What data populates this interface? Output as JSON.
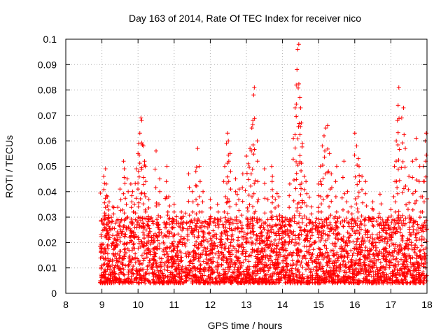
{
  "chart_data": {
    "type": "scatter",
    "title": "Day 163 of 2014, Rate Of TEC Index for receiver nico",
    "xlabel": "GPS time / hours",
    "ylabel": "ROTI / TECUs",
    "xlim": [
      8,
      18
    ],
    "ylim": [
      0,
      0.1
    ],
    "x_ticks": [
      8,
      9,
      10,
      11,
      12,
      13,
      14,
      15,
      16,
      17,
      18
    ],
    "y_ticks": [
      0,
      0.01,
      0.02,
      0.03,
      0.04,
      0.05,
      0.06,
      0.07,
      0.08,
      0.09,
      0.1
    ],
    "x_tick_labels": [
      "8",
      "9",
      "10",
      "11",
      "12",
      "13",
      "14",
      "15",
      "16",
      "17",
      "18"
    ],
    "y_tick_labels": [
      "0",
      "0.01",
      "0.02",
      "0.03",
      "0.04",
      "0.05",
      "0.06",
      "0.07",
      "0.08",
      "0.09",
      "0.1"
    ],
    "grid": true,
    "marker": "+",
    "color": "#ff0000",
    "data_start_hour": 8.95,
    "series": [
      {
        "name": "ROTI",
        "points": [
          [
            9.05,
            0.046
          ],
          [
            9.1,
            0.049
          ],
          [
            9.12,
            0.043
          ],
          [
            9.15,
            0.038
          ],
          [
            9.2,
            0.036
          ],
          [
            9.3,
            0.034
          ],
          [
            9.5,
            0.041
          ],
          [
            9.6,
            0.052
          ],
          [
            9.62,
            0.049
          ],
          [
            9.7,
            0.045
          ],
          [
            9.8,
            0.043
          ],
          [
            9.85,
            0.04
          ],
          [
            9.9,
            0.035
          ],
          [
            9.95,
            0.049
          ],
          [
            10.0,
            0.055
          ],
          [
            10.02,
            0.059
          ],
          [
            10.05,
            0.063
          ],
          [
            10.08,
            0.069
          ],
          [
            10.1,
            0.068
          ],
          [
            10.15,
            0.058
          ],
          [
            10.18,
            0.052
          ],
          [
            10.2,
            0.05
          ],
          [
            10.3,
            0.037
          ],
          [
            10.5,
            0.056
          ],
          [
            10.6,
            0.045
          ],
          [
            10.8,
            0.05
          ],
          [
            10.85,
            0.038
          ],
          [
            11.0,
            0.035
          ],
          [
            11.2,
            0.032
          ],
          [
            11.4,
            0.047
          ],
          [
            11.5,
            0.04
          ],
          [
            11.6,
            0.048
          ],
          [
            11.65,
            0.057
          ],
          [
            11.7,
            0.05
          ],
          [
            11.8,
            0.04
          ],
          [
            12.0,
            0.037
          ],
          [
            12.2,
            0.035
          ],
          [
            12.4,
            0.05
          ],
          [
            12.45,
            0.059
          ],
          [
            12.48,
            0.063
          ],
          [
            12.5,
            0.06
          ],
          [
            12.55,
            0.055
          ],
          [
            12.7,
            0.045
          ],
          [
            12.8,
            0.041
          ],
          [
            12.9,
            0.047
          ],
          [
            13.0,
            0.054
          ],
          [
            13.05,
            0.051
          ],
          [
            13.1,
            0.057
          ],
          [
            13.15,
            0.065
          ],
          [
            13.18,
            0.068
          ],
          [
            13.2,
            0.078
          ],
          [
            13.22,
            0.081
          ],
          [
            13.3,
            0.06
          ],
          [
            13.5,
            0.049
          ],
          [
            13.7,
            0.05
          ],
          [
            13.72,
            0.046
          ],
          [
            13.8,
            0.037
          ],
          [
            13.9,
            0.038
          ],
          [
            14.0,
            0.03
          ],
          [
            14.2,
            0.043
          ],
          [
            14.3,
            0.061
          ],
          [
            14.35,
            0.073
          ],
          [
            14.38,
            0.082
          ],
          [
            14.4,
            0.088
          ],
          [
            14.42,
            0.096
          ],
          [
            14.45,
            0.098
          ],
          [
            14.48,
            0.077
          ],
          [
            14.5,
            0.073
          ],
          [
            14.52,
            0.067
          ],
          [
            14.55,
            0.059
          ],
          [
            14.6,
            0.046
          ],
          [
            14.65,
            0.044
          ],
          [
            14.8,
            0.034
          ],
          [
            15.0,
            0.043
          ],
          [
            15.05,
            0.05
          ],
          [
            15.1,
            0.058
          ],
          [
            15.15,
            0.062
          ],
          [
            15.2,
            0.065
          ],
          [
            15.25,
            0.066
          ],
          [
            15.3,
            0.055
          ],
          [
            15.35,
            0.047
          ],
          [
            15.5,
            0.05
          ],
          [
            15.7,
            0.052
          ],
          [
            15.8,
            0.04
          ],
          [
            15.9,
            0.034
          ],
          [
            16.0,
            0.063
          ],
          [
            16.05,
            0.058
          ],
          [
            16.1,
            0.053
          ],
          [
            16.12,
            0.05
          ],
          [
            16.2,
            0.046
          ],
          [
            16.3,
            0.044
          ],
          [
            16.5,
            0.036
          ],
          [
            16.7,
            0.039
          ],
          [
            16.9,
            0.029
          ],
          [
            17.0,
            0.033
          ],
          [
            17.1,
            0.05
          ],
          [
            17.15,
            0.06
          ],
          [
            17.18,
            0.068
          ],
          [
            17.2,
            0.074
          ],
          [
            17.22,
            0.081
          ],
          [
            17.3,
            0.069
          ],
          [
            17.35,
            0.073
          ],
          [
            17.4,
            0.057
          ],
          [
            17.5,
            0.046
          ],
          [
            17.6,
            0.052
          ],
          [
            17.7,
            0.061
          ],
          [
            17.8,
            0.05
          ],
          [
            17.9,
            0.05
          ],
          [
            17.95,
            0.06
          ],
          [
            17.98,
            0.063
          ]
        ]
      }
    ]
  }
}
